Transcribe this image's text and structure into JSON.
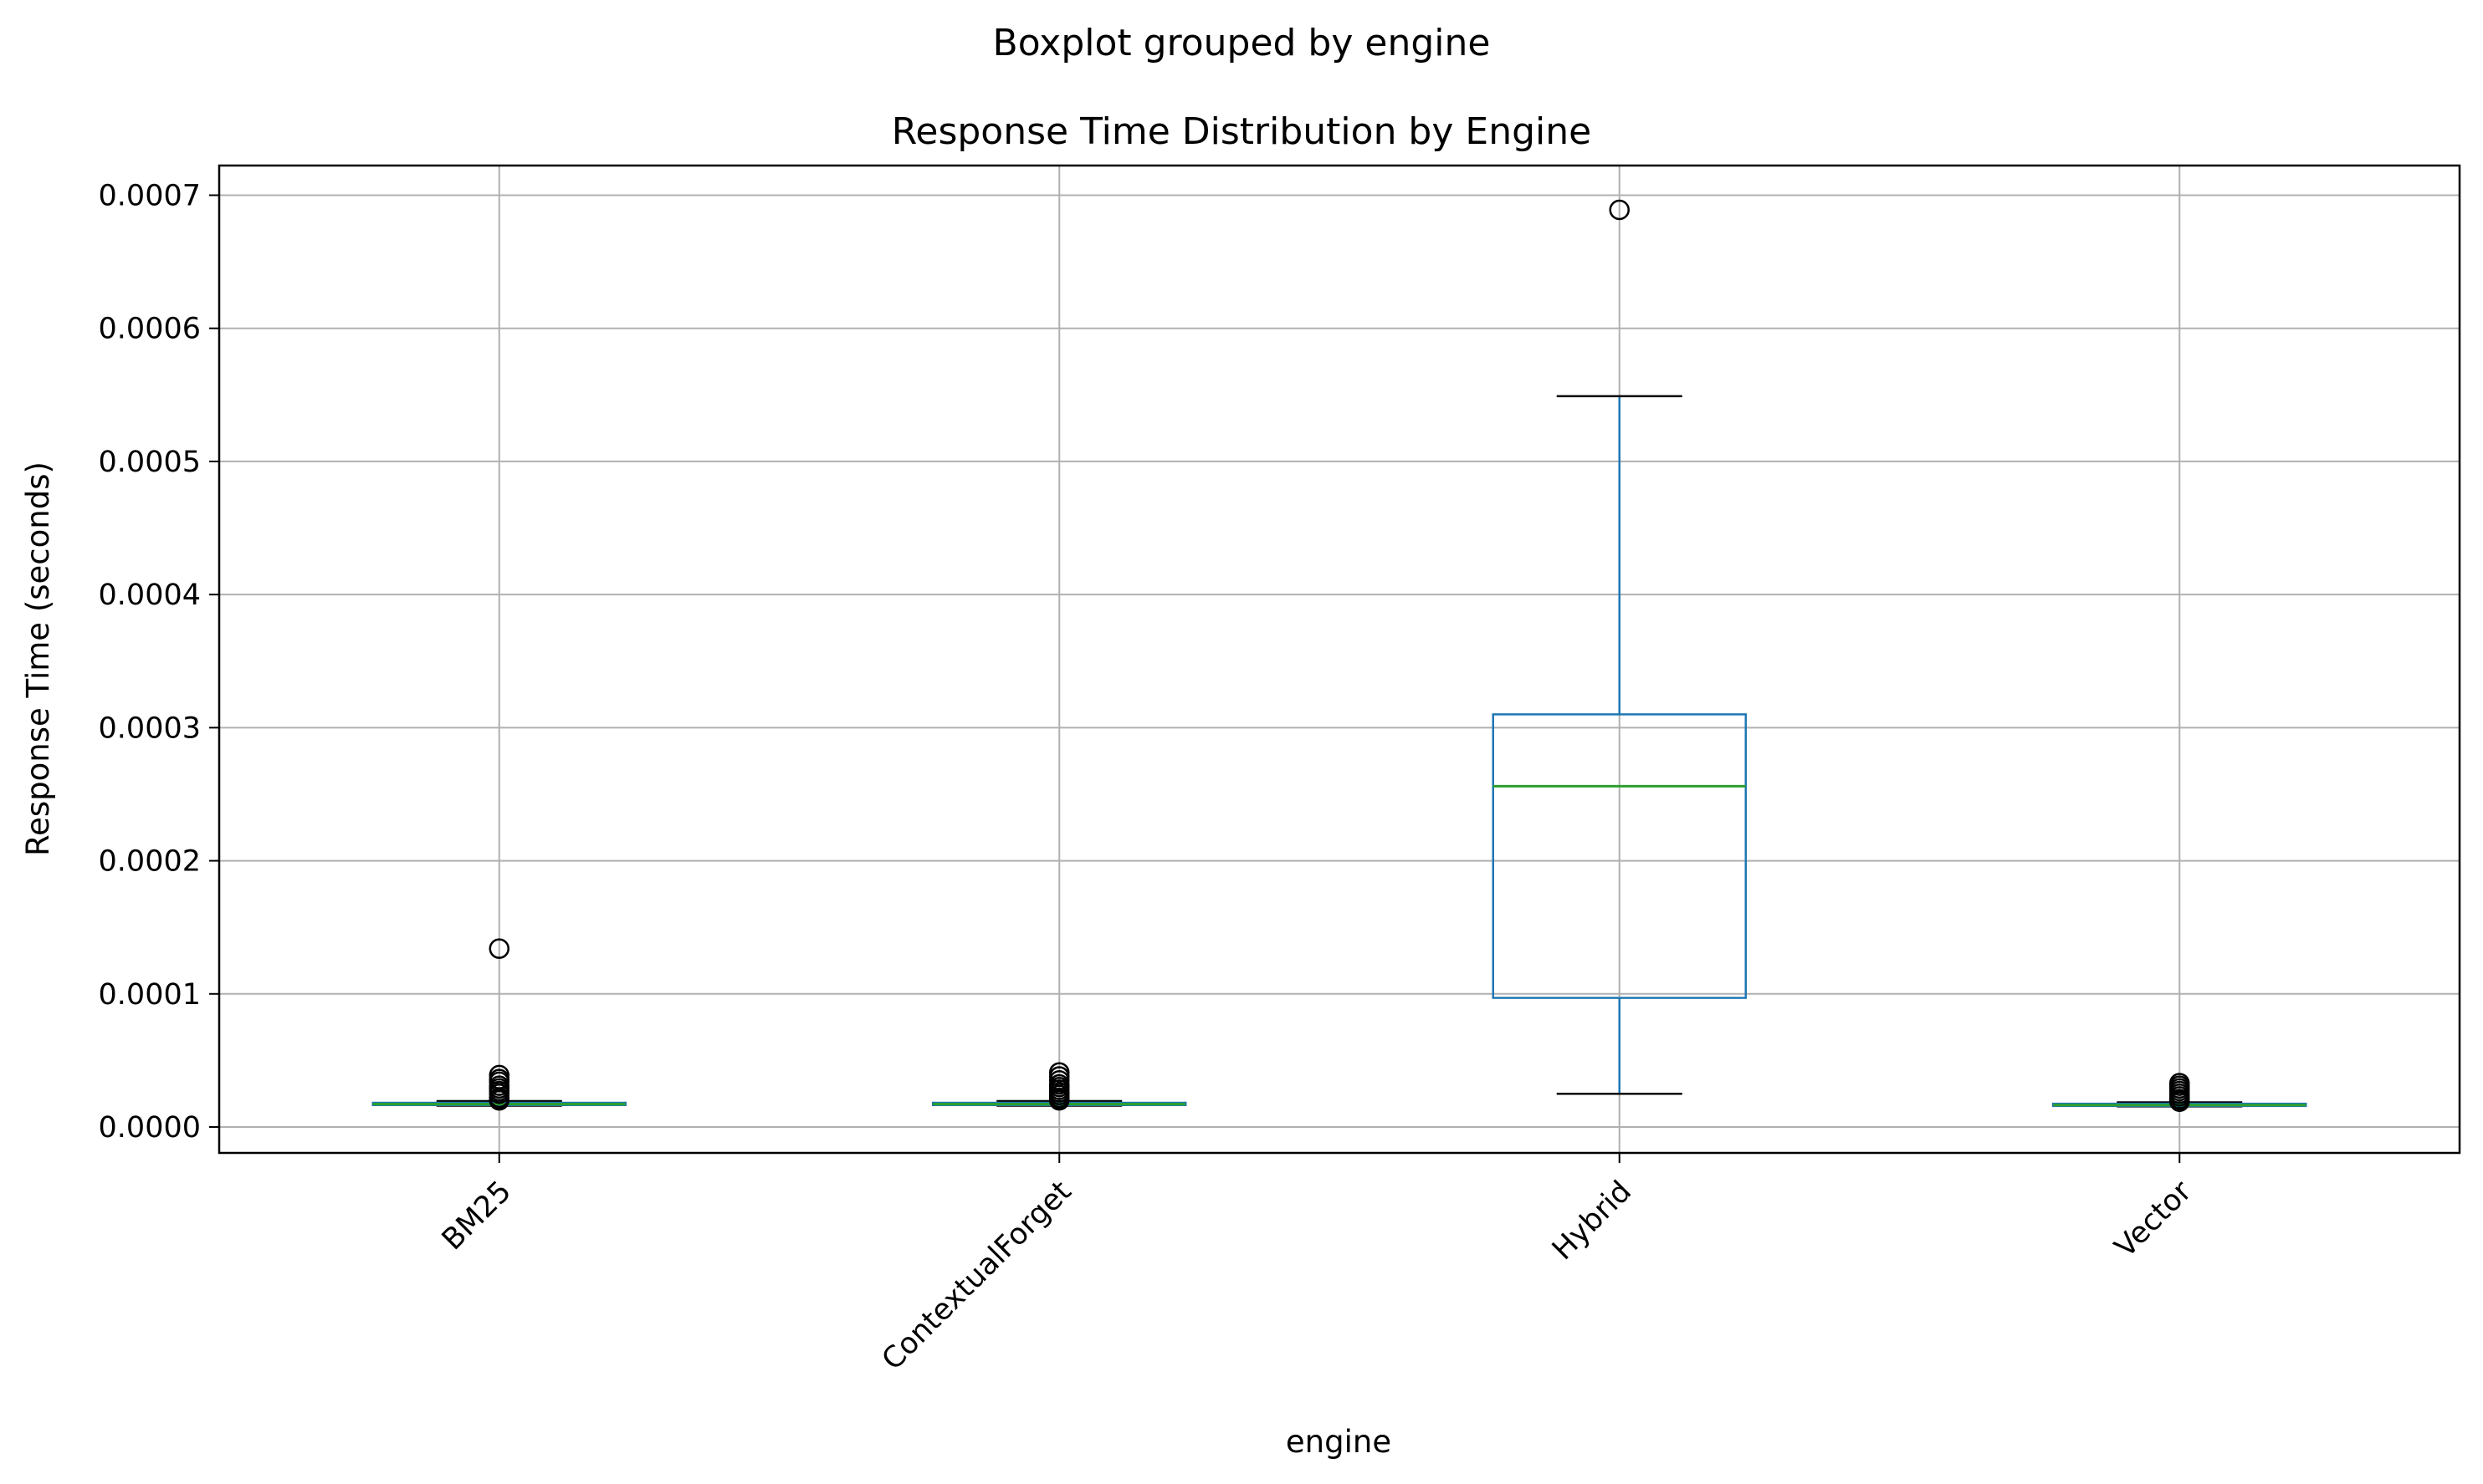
{
  "chart_data": {
    "type": "box",
    "suptitle": "Boxplot grouped by engine",
    "title": "Response Time Distribution by Engine",
    "xlabel": "engine",
    "ylabel": "Response Time (seconds)",
    "ylim": [
      -2e-05,
      0.000722
    ],
    "yticks": [
      0.0,
      0.0001,
      0.0002,
      0.0003,
      0.0004,
      0.0005,
      0.0006,
      0.0007
    ],
    "ytick_labels": [
      "0.0000",
      "0.0001",
      "0.0002",
      "0.0003",
      "0.0004",
      "0.0005",
      "0.0006",
      "0.0007"
    ],
    "grid": true,
    "box_color": "#1f77b4",
    "median_color": "#2ca02c",
    "whisker_cap_color": "#000000",
    "categories": [
      "BM25",
      "ContextualForget",
      "Hybrid",
      "Vector"
    ],
    "boxes": [
      {
        "category": "BM25",
        "whisker_low": 1.6e-05,
        "q1": 1.65e-05,
        "median": 1.72e-05,
        "q3": 1.82e-05,
        "whisker_high": 1.95e-05,
        "outliers": [
          0.000134,
          3.9e-05,
          3.6e-05,
          3.4e-05,
          3.1e-05,
          2.9e-05,
          2.7e-05,
          2.5e-05,
          2.2e-05,
          2.1e-05,
          2e-05
        ]
      },
      {
        "category": "ContextualForget",
        "whisker_low": 1.6e-05,
        "q1": 1.65e-05,
        "median": 1.72e-05,
        "q3": 1.82e-05,
        "whisker_high": 1.95e-05,
        "outliers": [
          4.1e-05,
          3.8e-05,
          3.5e-05,
          3.2e-05,
          3e-05,
          2.8e-05,
          2.6e-05,
          2.4e-05,
          2.2e-05,
          2.1e-05,
          2e-05
        ]
      },
      {
        "category": "Hybrid",
        "whisker_low": 2.5e-05,
        "q1": 9.7e-05,
        "median": 0.000256,
        "q3": 0.00031,
        "whisker_high": 0.000549,
        "outliers": [
          0.000689
        ]
      },
      {
        "category": "Vector",
        "whisker_low": 1.55e-05,
        "q1": 1.58e-05,
        "median": 1.65e-05,
        "q3": 1.75e-05,
        "whisker_high": 1.85e-05,
        "outliers": [
          3.3e-05,
          3.1e-05,
          2.9e-05,
          2.7e-05,
          2.5e-05,
          2.3e-05,
          2.1e-05,
          2e-05,
          1.9e-05
        ]
      }
    ]
  }
}
